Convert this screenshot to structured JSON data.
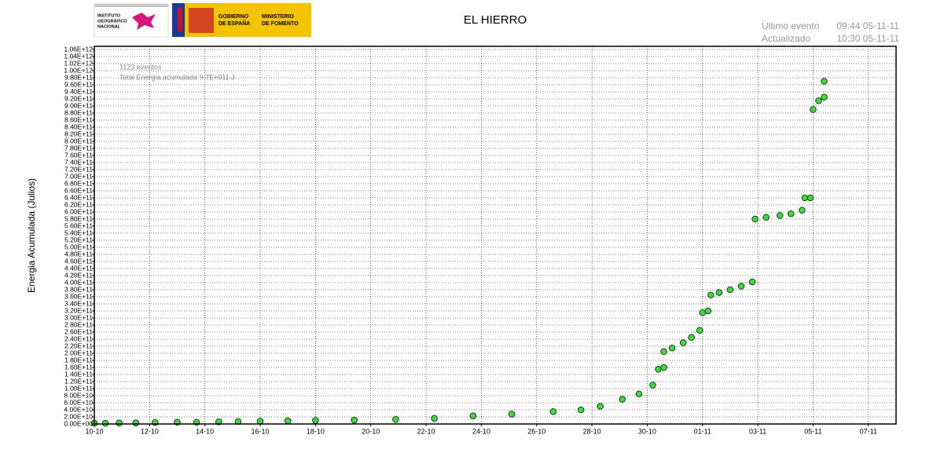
{
  "chart_data": {
    "type": "scatter",
    "title": "EL HIERRO",
    "logos": {
      "ign": [
        "INSTITUTO",
        "GEOGRÁFICO",
        "NACIONAL"
      ],
      "gobierno": [
        "GOBIERNO",
        "DE ESPAÑA"
      ],
      "ministerio": [
        "MINISTERIO",
        "DE FOMENTO"
      ]
    },
    "status": [
      [
        "Último evento",
        "09:44 05-11-11"
      ],
      [
        "Actualizado",
        "10:30  05-11-11"
      ]
    ],
    "annotations": [
      "1123 eventos",
      "Total Energia acumulada 9.7E+011 J"
    ],
    "y_label": "Energia Acumulada (Julios)",
    "marker_color": "#3ddc3d",
    "marker_edge": "#1a3a1a",
    "grid": true,
    "xlim": [
      0,
      29
    ],
    "xticks": [
      {
        "value": 0,
        "label": "10-10"
      },
      {
        "value": 2,
        "label": "12-10"
      },
      {
        "value": 4,
        "label": "14-10"
      },
      {
        "value": 6,
        "label": "16-10"
      },
      {
        "value": 8,
        "label": "18-10"
      },
      {
        "value": 10,
        "label": "20-10"
      },
      {
        "value": 12,
        "label": "22-10"
      },
      {
        "value": 14,
        "label": "24-10"
      },
      {
        "value": 16,
        "label": "26-10"
      },
      {
        "value": 18,
        "label": "28-10"
      },
      {
        "value": 20,
        "label": "30-10"
      },
      {
        "value": 22,
        "label": "01-11"
      },
      {
        "value": 24,
        "label": "03-11"
      },
      {
        "value": 26,
        "label": "05-11"
      },
      {
        "value": 28,
        "label": "07-11"
      }
    ],
    "ylim": [
      0,
      1060000000000.0
    ],
    "yticks": [
      {
        "value": 0,
        "label": "0.00E+00"
      },
      {
        "value": 20000000000.0,
        "label": "2.00E+10"
      },
      {
        "value": 40000000000.0,
        "label": "4.00E+10"
      },
      {
        "value": 60000000000.0,
        "label": "6.00E+10"
      },
      {
        "value": 80000000000.0,
        "label": "8.00E+10"
      },
      {
        "value": 100000000000.0,
        "label": "1.00E+11"
      },
      {
        "value": 120000000000.0,
        "label": "1.20E+11"
      },
      {
        "value": 140000000000.0,
        "label": "1.40E+11"
      },
      {
        "value": 160000000000.0,
        "label": "1.60E+11"
      },
      {
        "value": 180000000000.0,
        "label": "1.80E+11"
      },
      {
        "value": 200000000000.0,
        "label": "2.00E+11"
      },
      {
        "value": 220000000000.0,
        "label": "2.20E+11"
      },
      {
        "value": 240000000000.0,
        "label": "2.40E+11"
      },
      {
        "value": 260000000000.0,
        "label": "2.60E+11"
      },
      {
        "value": 280000000000.0,
        "label": "2.80E+11"
      },
      {
        "value": 300000000000.0,
        "label": "3.00E+11"
      },
      {
        "value": 320000000000.0,
        "label": "3.20E+11"
      },
      {
        "value": 340000000000.0,
        "label": "3.40E+11"
      },
      {
        "value": 360000000000.0,
        "label": "3.60E+11"
      },
      {
        "value": 380000000000.0,
        "label": "3.80E+11"
      },
      {
        "value": 400000000000.0,
        "label": "4.00E+11"
      },
      {
        "value": 420000000000.0,
        "label": "4.20E+11"
      },
      {
        "value": 440000000000.0,
        "label": "4.40E+11"
      },
      {
        "value": 460000000000.0,
        "label": "4.60E+11"
      },
      {
        "value": 480000000000.0,
        "label": "4.80E+11"
      },
      {
        "value": 500000000000.0,
        "label": "5.00E+11"
      },
      {
        "value": 520000000000.0,
        "label": "5.20E+11"
      },
      {
        "value": 540000000000.0,
        "label": "5.40E+11"
      },
      {
        "value": 560000000000.0,
        "label": "5.60E+11"
      },
      {
        "value": 580000000000.0,
        "label": "5.80E+11"
      },
      {
        "value": 600000000000.0,
        "label": "6.00E+11"
      },
      {
        "value": 620000000000.0,
        "label": "6.20E+11"
      },
      {
        "value": 640000000000.0,
        "label": "6.40E+11"
      },
      {
        "value": 660000000000.0,
        "label": "6.60E+11"
      },
      {
        "value": 680000000000.0,
        "label": "6.80E+11"
      },
      {
        "value": 700000000000.0,
        "label": "7.00E+11"
      },
      {
        "value": 720000000000.0,
        "label": "7.20E+11"
      },
      {
        "value": 740000000000.0,
        "label": "7.40E+11"
      },
      {
        "value": 760000000000.0,
        "label": "7.60E+11"
      },
      {
        "value": 780000000000.0,
        "label": "7.80E+11"
      },
      {
        "value": 800000000000.0,
        "label": "8.00E+11"
      },
      {
        "value": 820000000000.0,
        "label": "8.20E+11"
      },
      {
        "value": 840000000000.0,
        "label": "8.40E+11"
      },
      {
        "value": 860000000000.0,
        "label": "8.60E+11"
      },
      {
        "value": 880000000000.0,
        "label": "8.80E+11"
      },
      {
        "value": 900000000000.0,
        "label": "9.00E+11"
      },
      {
        "value": 920000000000.0,
        "label": "9.20E+11"
      },
      {
        "value": 940000000000.0,
        "label": "9.40E+11"
      },
      {
        "value": 960000000000.0,
        "label": "9.60E+11"
      },
      {
        "value": 980000000000.0,
        "label": "9.80E+11"
      },
      {
        "value": 1000000000000.0,
        "label": "1.00E+12"
      },
      {
        "value": 1020000000000.0,
        "label": "1.02E+12"
      },
      {
        "value": 1040000000000.0,
        "label": "1.04E+12"
      },
      {
        "value": 1060000000000.0,
        "label": "1.06E+12"
      }
    ],
    "x": [
      0,
      0.4,
      0.9,
      1.5,
      2.2,
      3,
      3.7,
      4.5,
      5.2,
      6,
      7,
      8,
      9.4,
      10.9,
      12.3,
      13.7,
      15.1,
      16.6,
      17.6,
      18.3,
      19.1,
      19.7,
      20.2,
      20.4,
      20.6,
      20.6,
      20.9,
      21.3,
      21.6,
      21.9,
      22,
      22.2,
      22.3,
      22.6,
      23,
      23.4,
      23.8,
      23.9,
      24.3,
      24.8,
      25.2,
      25.6,
      25.7,
      25.9,
      26,
      26.2,
      26.4,
      26.4
    ],
    "values": [
      2000000000.0,
      2000000000.0,
      3000000000.0,
      3000000000.0,
      4000000000.0,
      5000000000.0,
      5000000000.0,
      6000000000.0,
      7000000000.0,
      8000000000.0,
      9000000000.0,
      10000000000.0,
      11000000000.0,
      13000000000.0,
      16000000000.0,
      23000000000.0,
      28000000000.0,
      35000000000.0,
      40000000000.0,
      50000000000.0,
      70000000000.0,
      85000000000.0,
      110000000000.0,
      155000000000.0,
      160000000000.0,
      205000000000.0,
      215000000000.0,
      230000000000.0,
      245000000000.0,
      265000000000.0,
      315000000000.0,
      320000000000.0,
      365000000000.0,
      372000000000.0,
      380000000000.0,
      390000000000.0,
      402000000000.0,
      580000000000.0,
      585000000000.0,
      590000000000.0,
      595000000000.0,
      605000000000.0,
      640000000000.0,
      640000000000.0,
      890000000000.0,
      915000000000.0,
      925000000000.0,
      970000000000.0
    ]
  }
}
